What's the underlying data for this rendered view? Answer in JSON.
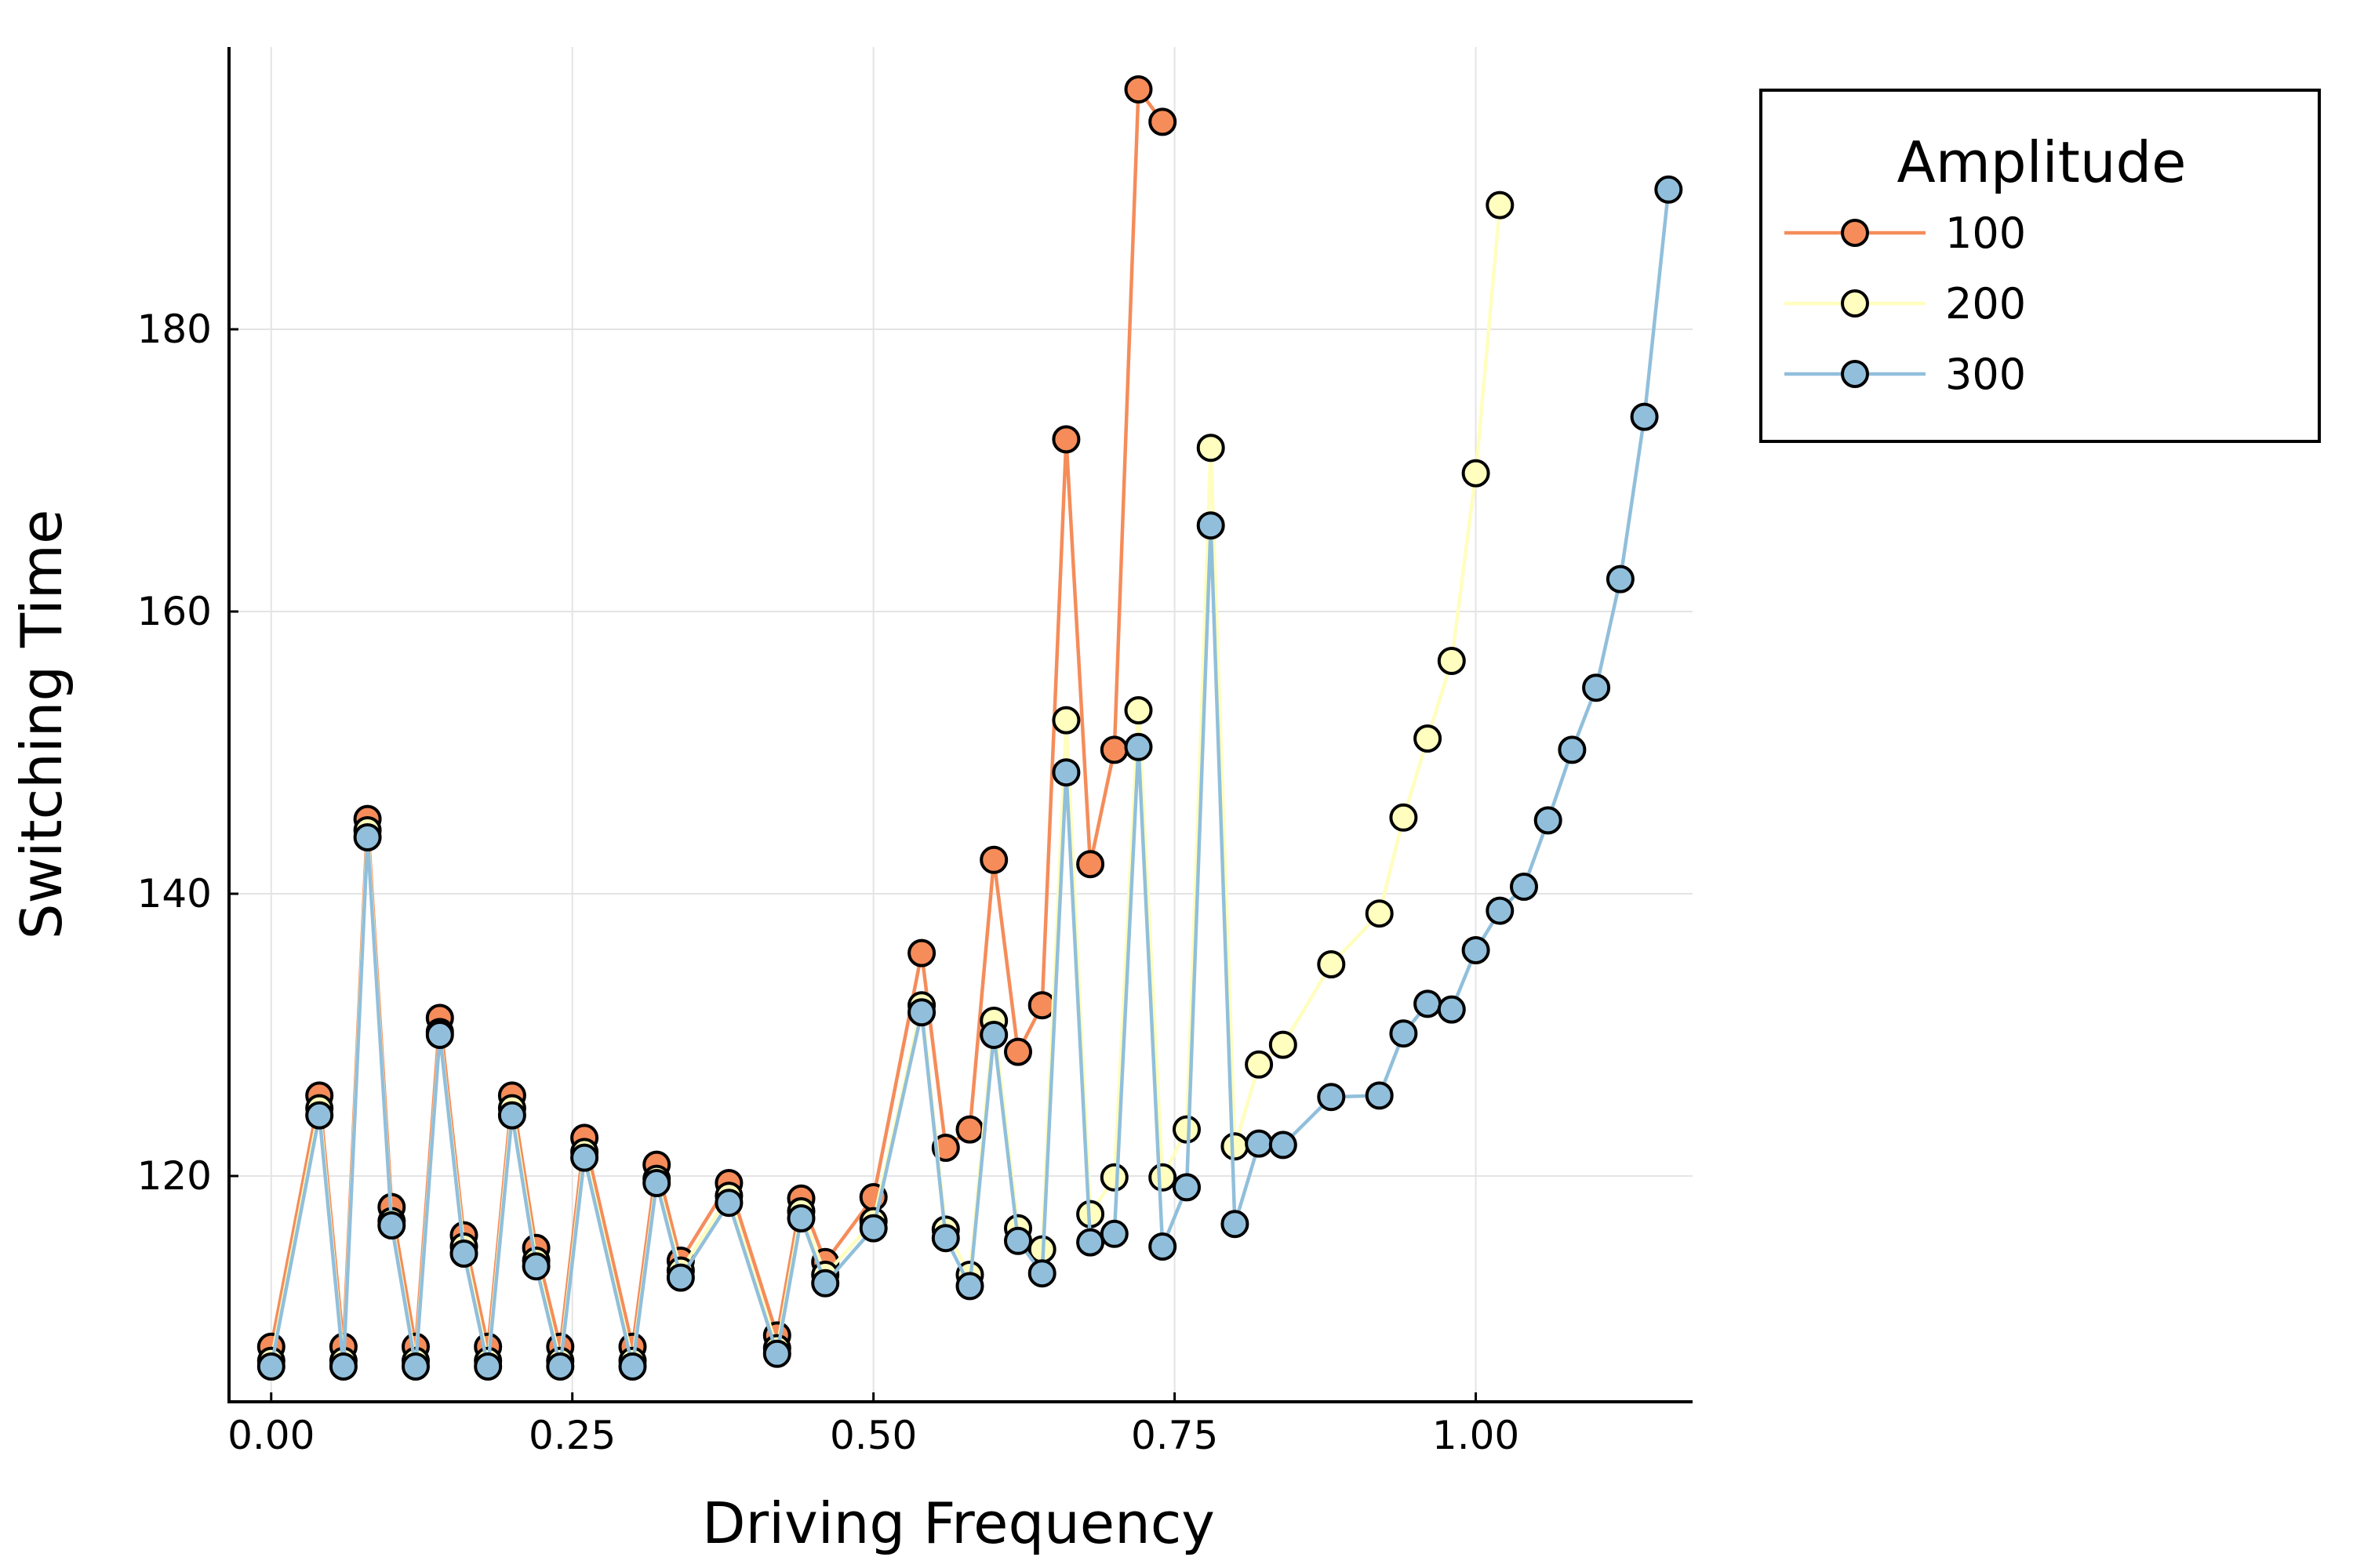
{
  "chart_data": {
    "type": "line",
    "title": "",
    "xlabel": "Driving Frequency",
    "ylabel": "Switching Time",
    "xlim": [
      -0.035,
      1.18
    ],
    "ylim": [
      104,
      200
    ],
    "xticks": [
      0.0,
      0.25,
      0.5,
      0.75,
      1.0
    ],
    "xtick_labels": [
      "0.00",
      "0.25",
      "0.50",
      "0.75",
      "1.00"
    ],
    "yticks": [
      120,
      140,
      160,
      180
    ],
    "ytick_labels": [
      "120",
      "140",
      "160",
      "180"
    ],
    "grid": true,
    "legend": {
      "title": "Amplitude",
      "placement": "outer-right-top"
    },
    "series": [
      {
        "name": "100",
        "color": "#f58c5a",
        "x": [
          0.0,
          0.04,
          0.06,
          0.08,
          0.1,
          0.12,
          0.14,
          0.16,
          0.18,
          0.2,
          0.22,
          0.24,
          0.26,
          0.3,
          0.32,
          0.34,
          0.38,
          0.42,
          0.44,
          0.46,
          0.5,
          0.54,
          0.56,
          0.58,
          0.6,
          0.62,
          0.64,
          0.66,
          0.68,
          0.7,
          0.72,
          0.74
        ],
        "y": [
          107.9,
          125.7,
          107.9,
          145.3,
          117.8,
          107.9,
          131.2,
          115.8,
          107.9,
          125.7,
          114.9,
          107.9,
          122.7,
          107.9,
          120.8,
          114.0,
          119.5,
          108.7,
          118.4,
          113.9,
          118.5,
          135.8,
          122.0,
          123.3,
          142.4,
          128.8,
          132.1,
          172.2,
          142.1,
          150.2,
          197.0,
          194.7
        ]
      },
      {
        "name": "200",
        "color": "#fffebe",
        "x": [
          0.0,
          0.04,
          0.06,
          0.08,
          0.1,
          0.12,
          0.14,
          0.16,
          0.18,
          0.2,
          0.22,
          0.24,
          0.26,
          0.3,
          0.32,
          0.34,
          0.38,
          0.42,
          0.44,
          0.46,
          0.5,
          0.54,
          0.56,
          0.58,
          0.6,
          0.62,
          0.64,
          0.66,
          0.68,
          0.7,
          0.72,
          0.74,
          0.76,
          0.78,
          0.8,
          0.82,
          0.84,
          0.88,
          0.92,
          0.94,
          0.96,
          0.98,
          1.0,
          1.02
        ],
        "y": [
          106.9,
          124.8,
          106.9,
          144.5,
          116.8,
          106.9,
          130.2,
          115.0,
          106.9,
          124.8,
          114.0,
          106.9,
          121.7,
          106.9,
          119.8,
          113.3,
          118.6,
          107.8,
          117.5,
          113.0,
          116.8,
          132.1,
          116.2,
          113.0,
          131.0,
          116.3,
          114.8,
          152.3,
          117.3,
          119.9,
          153.0,
          119.9,
          123.3,
          171.6,
          122.1,
          127.9,
          129.3,
          135.0,
          138.6,
          145.4,
          151.0,
          156.5,
          169.8,
          188.8
        ]
      },
      {
        "name": "300",
        "color": "#91bfdb",
        "x": [
          0.0,
          0.04,
          0.06,
          0.08,
          0.1,
          0.12,
          0.14,
          0.16,
          0.18,
          0.2,
          0.22,
          0.24,
          0.26,
          0.3,
          0.32,
          0.34,
          0.38,
          0.42,
          0.44,
          0.46,
          0.5,
          0.54,
          0.56,
          0.58,
          0.6,
          0.62,
          0.64,
          0.66,
          0.68,
          0.7,
          0.72,
          0.74,
          0.76,
          0.78,
          0.8,
          0.82,
          0.84,
          0.88,
          0.92,
          0.94,
          0.96,
          0.98,
          1.0,
          1.02,
          1.04,
          1.06,
          1.08,
          1.1,
          1.12,
          1.14,
          1.16
        ],
        "y": [
          106.5,
          124.3,
          106.5,
          144.0,
          116.5,
          106.5,
          130.0,
          114.5,
          106.5,
          124.3,
          113.6,
          106.5,
          121.3,
          106.5,
          119.5,
          112.8,
          118.1,
          107.4,
          117.0,
          112.4,
          116.3,
          131.6,
          115.6,
          112.2,
          130.0,
          115.4,
          113.1,
          148.6,
          115.3,
          115.9,
          150.4,
          115.0,
          119.2,
          166.1,
          116.6,
          122.3,
          122.2,
          125.6,
          125.7,
          130.1,
          132.2,
          131.8,
          136.0,
          138.8,
          140.5,
          145.2,
          150.2,
          154.6,
          162.3,
          173.8,
          189.9
        ]
      }
    ]
  }
}
